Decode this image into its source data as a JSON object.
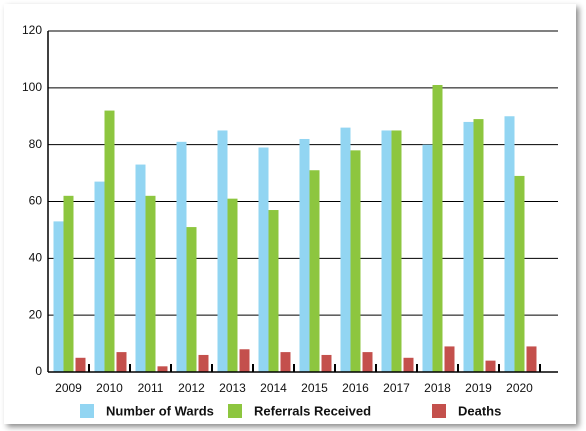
{
  "chart_data": {
    "type": "bar",
    "categories": [
      "2009",
      "2010",
      "2011",
      "2012",
      "2013",
      "2014",
      "2015",
      "2016",
      "2017",
      "2018",
      "2019",
      "2020"
    ],
    "series": [
      {
        "name": "Number of Wards",
        "color": "#92d5f2",
        "values": [
          53,
          67,
          73,
          81,
          85,
          79,
          82,
          86,
          85,
          80,
          88,
          90
        ]
      },
      {
        "name": "Referrals Received",
        "color": "#8dc63f",
        "values": [
          62,
          92,
          62,
          51,
          61,
          57,
          71,
          78,
          85,
          101,
          89,
          69
        ]
      },
      {
        "name": "Deaths",
        "color": "#c4504c",
        "values": [
          5,
          7,
          2,
          6,
          8,
          7,
          6,
          7,
          5,
          9,
          4,
          9
        ]
      }
    ],
    "ylim": [
      0,
      120
    ],
    "yticks": [
      0,
      20,
      40,
      60,
      80,
      100,
      120
    ],
    "grid": true,
    "legend": "bottom"
  }
}
